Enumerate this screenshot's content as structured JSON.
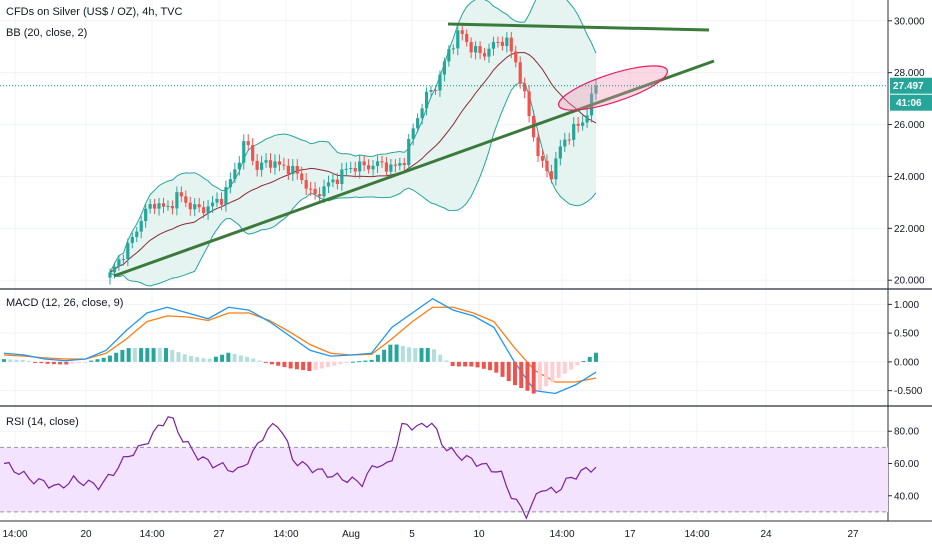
{
  "colors": {
    "up": "#26a69a",
    "down": "#ef5350",
    "bb_fill": "#e6f4f1",
    "bb_band": "#26a69a",
    "bb_basis": "#8b2c35",
    "trendline": "#3c7a3c",
    "ellipse": "#f48fb1",
    "macd_line": "#2196f3",
    "signal_line": "#ff7d12",
    "hist_up_strong": "#26a69a",
    "hist_up_weak": "#b2dfdb",
    "hist_down_strong": "#ef5350",
    "hist_down_weak": "#ffcdd2",
    "rsi_line": "#7b1fa2",
    "rsi_band": "#f3e3ff",
    "price_line": "#009688",
    "price_badge": "#26a69a",
    "timer_badge": "#26a69a"
  },
  "titles": {
    "main": "CFDs on Silver (US$ / OZ), 4h, TVC",
    "bb": "BB (20, close, 2)",
    "macd": "MACD (12, 26, close, 9)",
    "rsi": "RSI (14, close)"
  },
  "badges": {
    "price": "27.497",
    "timer": "41:06"
  },
  "chart_data": [
    {
      "type": "candlestick",
      "title": "CFDs on Silver (US$ / OZ), 4h, TVC",
      "ylim": [
        19.7,
        30.8
      ],
      "y_ticks": [
        "30.000",
        "28.000",
        "26.000",
        "24.000",
        "22.000",
        "20.000"
      ],
      "x_ticks": [
        "14:00",
        "20",
        "14:00",
        "27",
        "14:00",
        "Aug",
        "5",
        "10",
        "14:00",
        "17",
        "14:00",
        "24",
        "27"
      ],
      "last_price": 27.497,
      "close_path": [
        20.2,
        20.9,
        21.6,
        22.6,
        23.0,
        22.7,
        23.3,
        22.9,
        22.7,
        22.9,
        23.2,
        24.2,
        25.4,
        24.3,
        24.6,
        24.4,
        24.3,
        23.9,
        23.2,
        23.6,
        23.9,
        24.3,
        24.4,
        24.4,
        24.5,
        24.3,
        24.6,
        26.1,
        27.1,
        27.6,
        28.9,
        29.6,
        28.9,
        28.7,
        29.1,
        29.3,
        28.3,
        26.5,
        24.6,
        24.0,
        25.3,
        25.8,
        26.2,
        27.5
      ],
      "annotations": [
        "bollinger bands",
        "ascending trendline",
        "horizontal resistance line",
        "highlight ellipse"
      ]
    },
    {
      "type": "line",
      "title": "MACD (12, 26, close, 9)",
      "ylim": [
        -0.75,
        1.25
      ],
      "y_ticks": [
        "1.000",
        "0.500",
        "0.000",
        "-0.500"
      ],
      "series": [
        {
          "name": "MACD",
          "values": [
            0.15,
            0.12,
            0.05,
            0.02,
            0.05,
            0.2,
            0.55,
            0.85,
            0.95,
            0.85,
            0.75,
            0.95,
            0.9,
            0.7,
            0.45,
            0.2,
            0.1,
            0.12,
            0.15,
            0.6,
            0.85,
            1.1,
            0.9,
            0.8,
            0.6,
            0.0,
            -0.5,
            -0.55,
            -0.4,
            -0.18
          ]
        },
        {
          "name": "Signal",
          "values": [
            0.12,
            0.1,
            0.07,
            0.05,
            0.05,
            0.15,
            0.4,
            0.7,
            0.8,
            0.78,
            0.72,
            0.85,
            0.85,
            0.72,
            0.52,
            0.3,
            0.15,
            0.12,
            0.13,
            0.4,
            0.7,
            0.95,
            0.95,
            0.85,
            0.7,
            0.25,
            -0.15,
            -0.35,
            -0.35,
            -0.28
          ]
        }
      ]
    },
    {
      "type": "line",
      "title": "RSI (14, close)",
      "ylim": [
        25,
        95
      ],
      "y_ticks": [
        "80.00",
        "60.00",
        "40.00"
      ],
      "band": [
        30,
        70
      ],
      "series": [
        {
          "name": "RSI",
          "values": [
            60,
            55,
            50,
            48,
            45,
            50,
            48,
            46,
            55,
            65,
            70,
            80,
            90,
            75,
            65,
            60,
            58,
            55,
            65,
            80,
            85,
            62,
            58,
            55,
            52,
            50,
            48,
            60,
            58,
            85,
            82,
            86,
            70,
            65,
            62,
            58,
            55,
            38,
            28,
            45,
            42,
            50,
            55,
            58
          ]
        }
      ]
    }
  ]
}
